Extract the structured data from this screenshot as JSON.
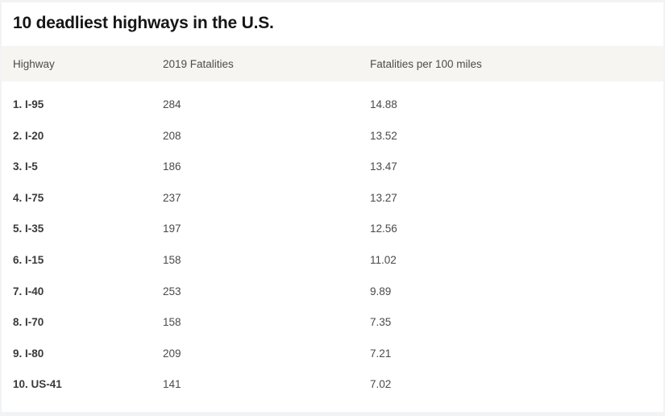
{
  "page": {
    "background_color": "#f2f3f4",
    "card_background_color": "#ffffff",
    "header_background_color": "#f6f5f1"
  },
  "table": {
    "title": "10 deadliest highways in the U.S.",
    "columns": {
      "highway": "Highway",
      "fatalities": "2019 Fatalities",
      "per_100_miles": "Fatalities per 100 miles"
    },
    "rows": [
      {
        "highway": "1. I-95",
        "fatalities": "284",
        "per_100_miles": "14.88"
      },
      {
        "highway": "2. I-20",
        "fatalities": "208",
        "per_100_miles": "13.52"
      },
      {
        "highway": "3. I-5",
        "fatalities": "186",
        "per_100_miles": "13.47"
      },
      {
        "highway": "4. I-75",
        "fatalities": "237",
        "per_100_miles": "13.27"
      },
      {
        "highway": "5. I-35",
        "fatalities": "197",
        "per_100_miles": "12.56"
      },
      {
        "highway": "6. I-15",
        "fatalities": "158",
        "per_100_miles": "11.02"
      },
      {
        "highway": "7. I-40",
        "fatalities": "253",
        "per_100_miles": "9.89"
      },
      {
        "highway": "8. I-70",
        "fatalities": "158",
        "per_100_miles": "7.35"
      },
      {
        "highway": "9. I-80",
        "fatalities": "209",
        "per_100_miles": "7.21"
      },
      {
        "highway": "10. US-41",
        "fatalities": "141",
        "per_100_miles": "7.02"
      }
    ]
  },
  "chart_data": {
    "type": "table",
    "title": "10 deadliest highways in the U.S.",
    "columns": [
      "Highway",
      "2019 Fatalities",
      "Fatalities per 100 miles"
    ],
    "highways": [
      "I-95",
      "I-20",
      "I-5",
      "I-75",
      "I-35",
      "I-15",
      "I-40",
      "I-70",
      "I-80",
      "US-41"
    ],
    "fatalities_2019": [
      284,
      208,
      186,
      237,
      197,
      158,
      253,
      158,
      209,
      141
    ],
    "fatalities_per_100_miles": [
      14.88,
      13.52,
      13.47,
      13.27,
      12.56,
      11.02,
      9.89,
      7.35,
      7.21,
      7.02
    ]
  }
}
